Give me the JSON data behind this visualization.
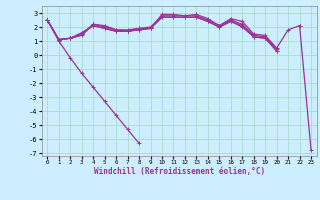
{
  "xlabel": "Windchill (Refroidissement éolien,°C)",
  "bg_color": "#cceeff",
  "grid_color": "#aaddcc",
  "line_color": "#993399",
  "xlim": [
    -0.5,
    23.5
  ],
  "ylim": [
    -7.2,
    3.5
  ],
  "yticks": [
    -7,
    -6,
    -5,
    -4,
    -3,
    -2,
    -1,
    0,
    1,
    2,
    3
  ],
  "xticks": [
    0,
    1,
    2,
    3,
    4,
    5,
    6,
    7,
    8,
    9,
    10,
    11,
    12,
    13,
    14,
    15,
    16,
    17,
    18,
    19,
    20,
    21,
    22,
    23
  ],
  "series": [
    [
      2.5,
      1.1,
      1.2,
      1.4,
      2.2,
      2.1,
      1.8,
      1.7,
      1.9,
      1.9,
      2.9,
      2.9,
      2.8,
      2.9,
      2.6,
      2.1,
      2.6,
      2.4,
      1.5,
      1.4,
      0.5,
      1.8,
      2.1,
      null
    ],
    [
      2.5,
      1.1,
      1.2,
      1.5,
      2.2,
      2.0,
      1.8,
      1.8,
      1.9,
      2.0,
      2.8,
      2.8,
      2.8,
      2.8,
      2.5,
      2.1,
      2.5,
      2.2,
      1.4,
      1.3,
      0.4,
      null,
      null,
      null
    ],
    [
      2.5,
      1.1,
      1.2,
      1.5,
      2.1,
      1.9,
      1.7,
      1.7,
      1.8,
      1.9,
      2.7,
      2.7,
      2.7,
      2.7,
      2.4,
      2.0,
      2.4,
      2.1,
      1.3,
      1.2,
      0.3,
      null,
      null,
      null
    ],
    [
      2.5,
      1.1,
      1.2,
      1.6,
      2.1,
      1.9,
      1.7,
      1.7,
      1.8,
      1.9,
      2.7,
      2.7,
      2.7,
      2.7,
      2.4,
      2.0,
      2.4,
      2.0,
      1.3,
      1.2,
      0.3,
      null,
      null,
      null
    ],
    [
      2.5,
      1.0,
      -0.2,
      -1.3,
      -2.3,
      -3.3,
      -4.3,
      -5.3,
      -6.3,
      null,
      null,
      null,
      null,
      null,
      null,
      null,
      null,
      null,
      null,
      null,
      null,
      null,
      2.1,
      -6.8
    ]
  ],
  "marker_size": 2.5,
  "line_width": 0.9
}
